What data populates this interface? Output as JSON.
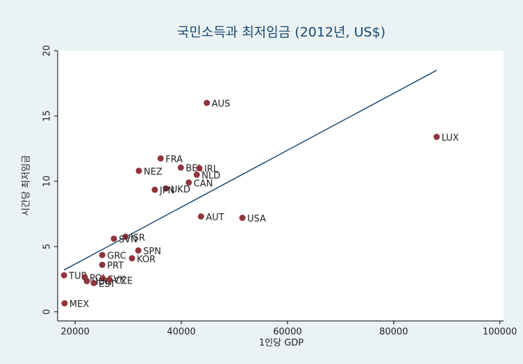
{
  "chart_data": {
    "type": "scatter",
    "title": "국민소득과 최저임금 (2012년, US$)",
    "x_label": "1인당 GDP",
    "y_label": "시간당 최저임금",
    "xlim": [
      16700,
      100700
    ],
    "ylim": [
      -0.7,
      20
    ],
    "xticks": [
      20000,
      40000,
      60000,
      80000,
      100000
    ],
    "yticks": [
      0,
      5,
      10,
      15,
      20
    ],
    "color": "#90353b",
    "line_color": "#1a476f",
    "labels": [
      "AUS",
      "LUX",
      "FRA",
      "BEL",
      "IRL",
      "NEZ",
      "NLD",
      "CAN",
      "UKD",
      "JPN",
      "AUT",
      "USA",
      "ISR",
      "SVN",
      "SPN",
      "GRC",
      "KOR",
      "PRT",
      "TUR",
      "POL",
      "SVK",
      "HUN",
      "EST",
      "CZE",
      "MEX"
    ],
    "x": [
      44800,
      88100,
      36100,
      39900,
      43400,
      32000,
      42900,
      41400,
      37100,
      35000,
      43700,
      51500,
      29500,
      27300,
      31900,
      25100,
      30700,
      25100,
      17900,
      21800,
      25200,
      22200,
      23500,
      26500,
      18000
    ],
    "values": [
      16.0,
      13.4,
      11.75,
      11.05,
      11.0,
      10.8,
      10.5,
      9.9,
      9.45,
      9.35,
      7.3,
      7.2,
      5.75,
      5.6,
      4.7,
      4.35,
      4.1,
      3.6,
      2.8,
      2.65,
      2.55,
      2.35,
      2.2,
      2.45,
      0.65
    ],
    "fit_line": {
      "x": [
        17900,
        88100
      ],
      "y": [
        3.2,
        18.5
      ]
    }
  }
}
